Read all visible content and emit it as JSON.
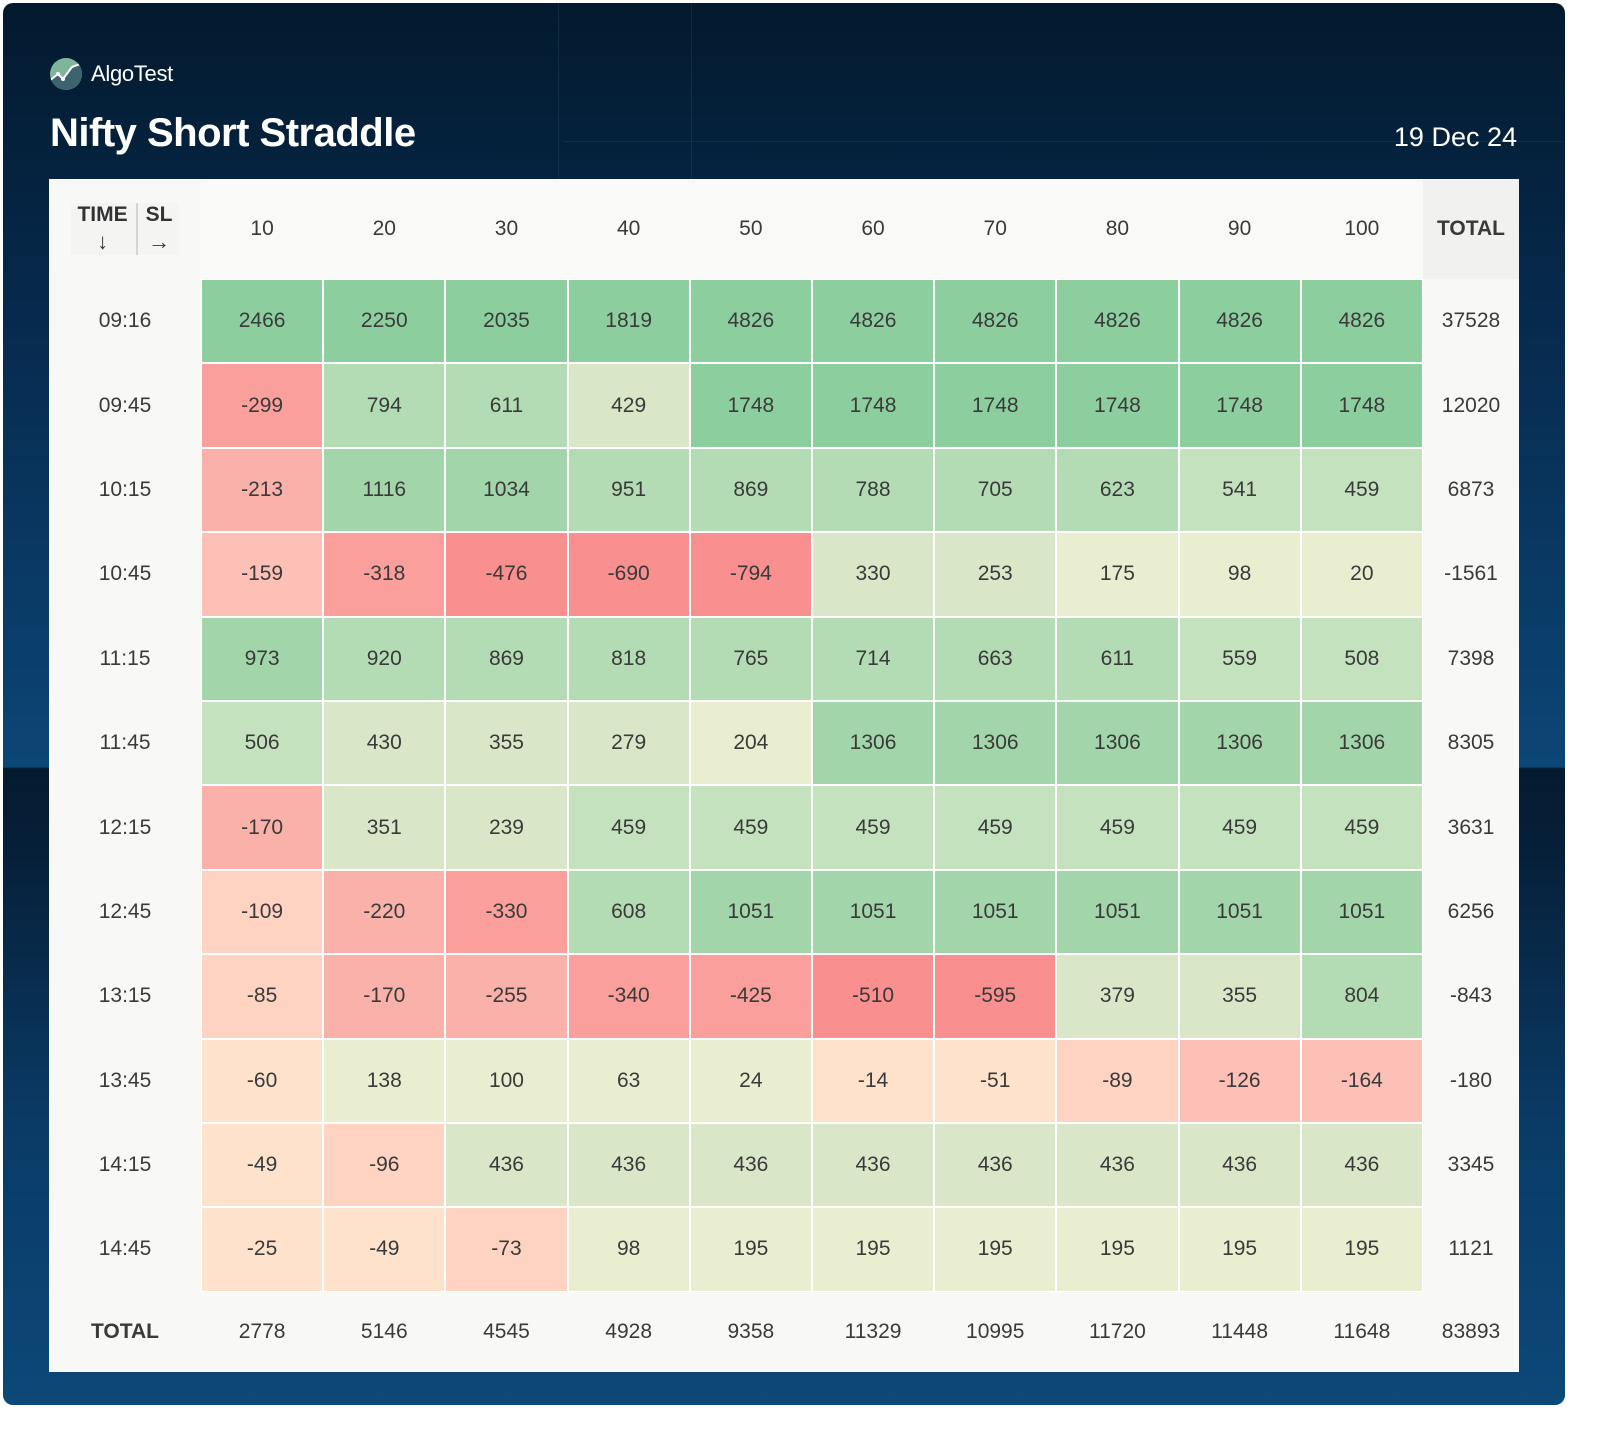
{
  "brand": {
    "name": "AlgoTest",
    "logo_icon": "algotest-logo-icon"
  },
  "header": {
    "title": "Nifty Short Straddle",
    "date": "19 Dec 24"
  },
  "table": {
    "corner": {
      "time_label": "TIME",
      "time_arrow": "↓",
      "sl_label": "SL",
      "sl_arrow": "→"
    },
    "total_label": "TOTAL"
  },
  "chart_data": {
    "type": "heatmap",
    "title": "Nifty Short Straddle",
    "xlabel": "SL",
    "ylabel": "TIME",
    "x": [
      "10",
      "20",
      "30",
      "40",
      "50",
      "60",
      "70",
      "80",
      "90",
      "100"
    ],
    "y": [
      "09:16",
      "09:45",
      "10:15",
      "10:45",
      "11:15",
      "11:45",
      "12:15",
      "12:45",
      "13:15",
      "13:45",
      "14:15",
      "14:45"
    ],
    "values": [
      [
        2466,
        2250,
        2035,
        1819,
        4826,
        4826,
        4826,
        4826,
        4826,
        4826
      ],
      [
        -299,
        794,
        611,
        429,
        1748,
        1748,
        1748,
        1748,
        1748,
        1748
      ],
      [
        -213,
        1116,
        1034,
        951,
        869,
        788,
        705,
        623,
        541,
        459
      ],
      [
        -159,
        -318,
        -476,
        -690,
        -794,
        330,
        253,
        175,
        98,
        20
      ],
      [
        973,
        920,
        869,
        818,
        765,
        714,
        663,
        611,
        559,
        508
      ],
      [
        506,
        430,
        355,
        279,
        204,
        1306,
        1306,
        1306,
        1306,
        1306
      ],
      [
        -170,
        351,
        239,
        459,
        459,
        459,
        459,
        459,
        459,
        459
      ],
      [
        -109,
        -220,
        -330,
        608,
        1051,
        1051,
        1051,
        1051,
        1051,
        1051
      ],
      [
        -85,
        -170,
        -255,
        -340,
        -425,
        -510,
        -595,
        379,
        355,
        804
      ],
      [
        -60,
        138,
        100,
        63,
        24,
        -14,
        -51,
        -89,
        -126,
        -164
      ],
      [
        -49,
        -96,
        436,
        436,
        436,
        436,
        436,
        436,
        436,
        436
      ],
      [
        -25,
        -49,
        -73,
        98,
        195,
        195,
        195,
        195,
        195,
        195
      ]
    ],
    "row_totals": [
      37528,
      12020,
      6873,
      -1561,
      7398,
      8305,
      3631,
      6256,
      -843,
      -180,
      3345,
      1121
    ],
    "column_totals": [
      2778,
      5146,
      4545,
      4928,
      9358,
      11329,
      10995,
      11720,
      11448,
      11648
    ],
    "grand_total": 83893,
    "color_scale": {
      "positive": [
        "#eaeed1",
        "#d9e7c8",
        "#c5e2bf",
        "#b3dcb4",
        "#a2d5a9",
        "#8dce9f"
      ],
      "positive_thresholds": [
        210,
        440,
        560,
        960,
        1400
      ],
      "negative": [
        "#fee2cc",
        "#fed3c2",
        "#fcc0b6",
        "#fab1aa",
        "#fa9f9b",
        "#f98f8f"
      ],
      "negative_thresholds": [
        65,
        115,
        168,
        270,
        440
      ]
    }
  }
}
